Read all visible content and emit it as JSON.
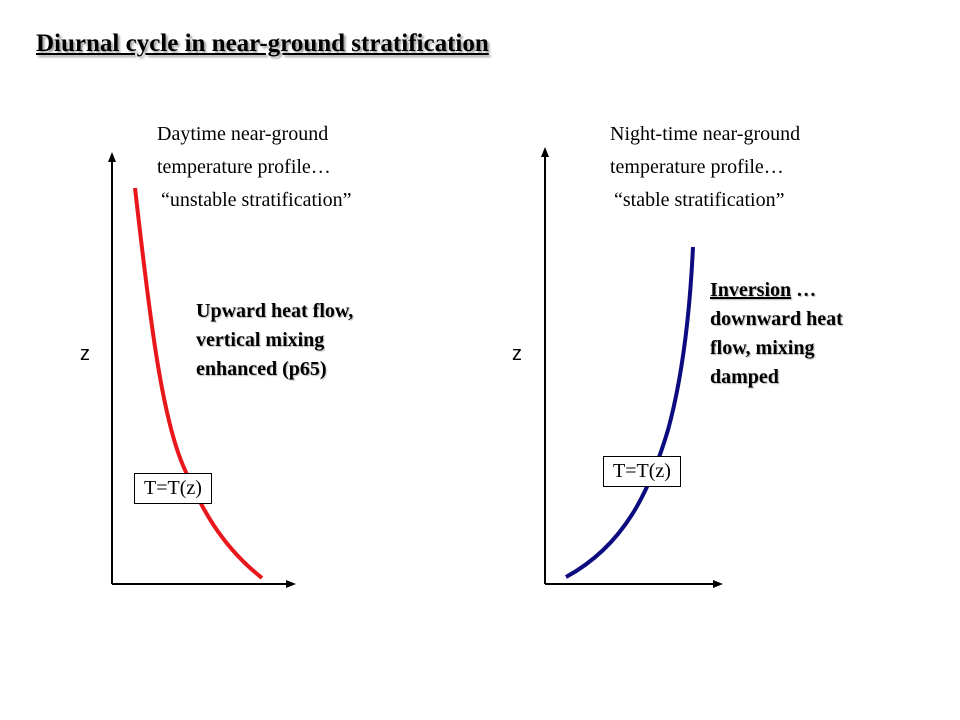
{
  "title": "Diurnal cycle in near-ground stratification",
  "day": {
    "caption": [
      "Daytime near-ground",
      "temperature profile…",
      "“unstable stratification”"
    ],
    "axis_label": "z",
    "box_label": "T=T(z)",
    "note": [
      "Upward heat flow,",
      "vertical mixing",
      "enhanced (p65)"
    ],
    "curve_color": "#e8171b"
  },
  "night": {
    "caption": [
      "Night-time near-ground",
      "temperature profile…",
      "“stable stratification”"
    ],
    "axis_label": "z",
    "box_label": "T=T(z)",
    "note_highlight": "Inversion",
    "note_first_rest": " …",
    "note_rest": [
      "downward heat",
      "flow, mixing",
      "damped"
    ],
    "curve_color": "#0c0c80"
  }
}
